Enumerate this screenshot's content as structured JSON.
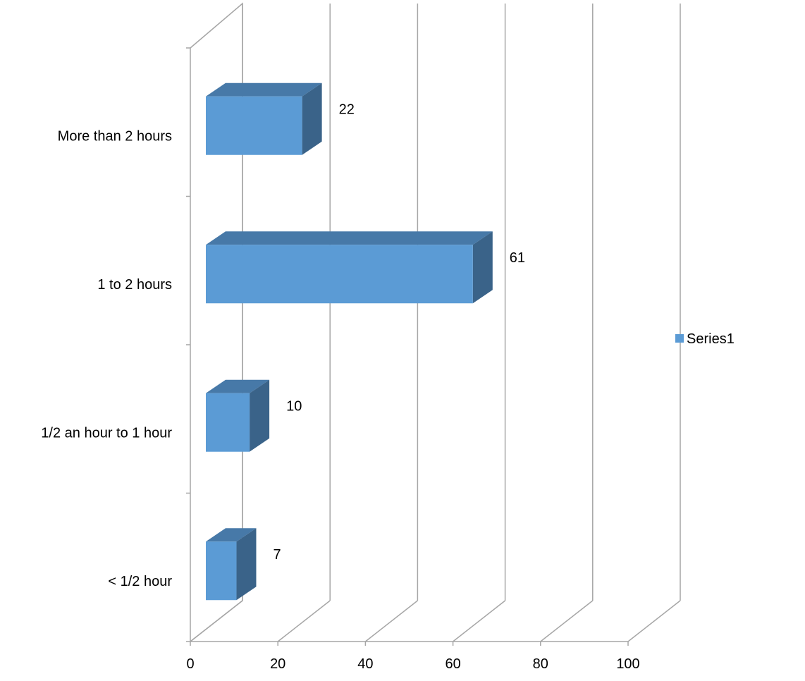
{
  "chart_data": {
    "type": "bar",
    "orientation": "horizontal",
    "style": "3d-clustered-bar",
    "categories": [
      "< 1/2 hour",
      "1/2 an hour to 1 hour",
      "1 to 2 hours",
      "More than 2 hours"
    ],
    "series": [
      {
        "name": "Series1",
        "values": [
          7,
          10,
          61,
          22
        ]
      }
    ],
    "data_labels": [
      "7",
      "10",
      "61",
      "22"
    ],
    "xlim": [
      0,
      100
    ],
    "x_ticks": [
      0,
      20,
      40,
      60,
      80,
      100
    ],
    "x_tick_labels": [
      "0",
      "20",
      "40",
      "60",
      "80",
      "100"
    ],
    "grid": true,
    "legend": {
      "position": "right",
      "entries": [
        "Series1"
      ]
    },
    "colors": {
      "bar_front": "#5b9bd5",
      "bar_top": "#4779a8",
      "bar_side": "#3a6389",
      "gridline": "#a6a6a6"
    }
  }
}
